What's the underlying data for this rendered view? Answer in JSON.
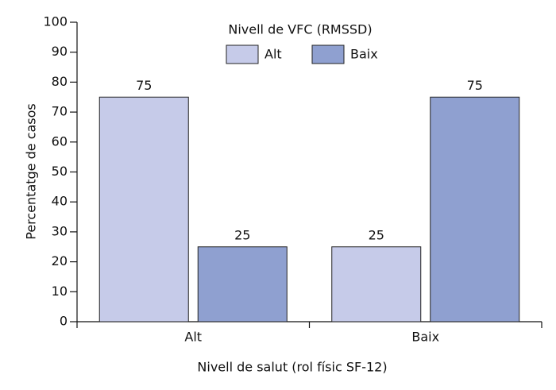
{
  "chart_data": {
    "type": "bar",
    "legend_title": "Nivell de VFC (RMSSD)",
    "x_label": "Nivell de salut (rol físic SF-12)",
    "y_label": "Percentatge de casos",
    "categories": [
      "Alt",
      "Baix"
    ],
    "series": [
      {
        "name": "Alt",
        "color": "#c6cbe9",
        "values": [
          75,
          25
        ]
      },
      {
        "name": "Baix",
        "color": "#8fa0d0",
        "values": [
          25,
          75
        ]
      }
    ],
    "ylim": [
      0,
      100
    ],
    "yticks": [
      0,
      10,
      20,
      30,
      40,
      50,
      60,
      70,
      80,
      90,
      100
    ],
    "grid": false,
    "data_labels": true,
    "legend": "top"
  }
}
